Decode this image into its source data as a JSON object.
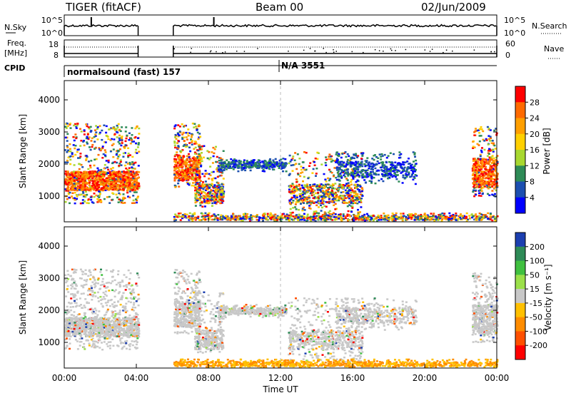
{
  "header": {
    "station": "TIGER (fitACF)",
    "beam": "Beam 00",
    "date": "02/Jun/2009"
  },
  "chart_data": [
    {
      "type": "line",
      "panel": "noise",
      "left_label": "N.Sky",
      "right_label": "N.Search",
      "y_left_ticks": [
        "10^5",
        "10^0"
      ],
      "y_right_ticks": [
        "10^5",
        "10^0"
      ],
      "note": "sky noise trace present 00:00-04:00 and 06:00-24:00"
    },
    {
      "type": "line",
      "panel": "frequency",
      "left_label_line1": "Freq.",
      "left_label_line2": "[MHz]",
      "right_label": "Nave",
      "y_left_ticks": [
        "18",
        "8"
      ],
      "y_right_ticks": [
        "60",
        "0"
      ]
    },
    {
      "type": "table",
      "panel": "cpid",
      "label": "CPID",
      "segments": [
        "normalsound (fast) 157",
        "N/A 3551"
      ]
    },
    {
      "type": "heatmap",
      "panel": "power",
      "ylabel": "Slant Range [km]",
      "yticks": [
        "4000",
        "3000",
        "2000",
        "1000"
      ],
      "ylim": [
        200,
        4600
      ],
      "xlim": [
        0,
        24
      ],
      "colorbar_label": "Power [dB]",
      "colorbar_ticks": [
        "28",
        "24",
        "20",
        "16",
        "12",
        "8",
        "4"
      ],
      "colorbar_colors": [
        "#ff0000",
        "#ff6a00",
        "#ff9f00",
        "#ffd000",
        "#a8d830",
        "#2e8b57",
        "#1c4fb0",
        "#0000ff"
      ]
    },
    {
      "type": "heatmap",
      "panel": "velocity",
      "ylabel": "Slant Range [km]",
      "yticks": [
        "4000",
        "3000",
        "2000",
        "1000"
      ],
      "ylim": [
        200,
        4600
      ],
      "xlim": [
        0,
        24
      ],
      "xticks": [
        "00:00",
        "04:00",
        "08:00",
        "12:00",
        "16:00",
        "20:00",
        "00:00"
      ],
      "xlabel": "Time UT",
      "colorbar_label": "Velocity [m s⁻¹]",
      "colorbar_ticks": [
        "200",
        "100",
        "50",
        "15",
        "-15",
        "-50",
        "-100",
        "-200"
      ],
      "colorbar_colors": [
        "#1c3fb0",
        "#2e8b57",
        "#40c040",
        "#9be04a",
        "#c8c8c8",
        "#ffc000",
        "#ff8c00",
        "#ff5000",
        "#ff0000"
      ]
    }
  ]
}
